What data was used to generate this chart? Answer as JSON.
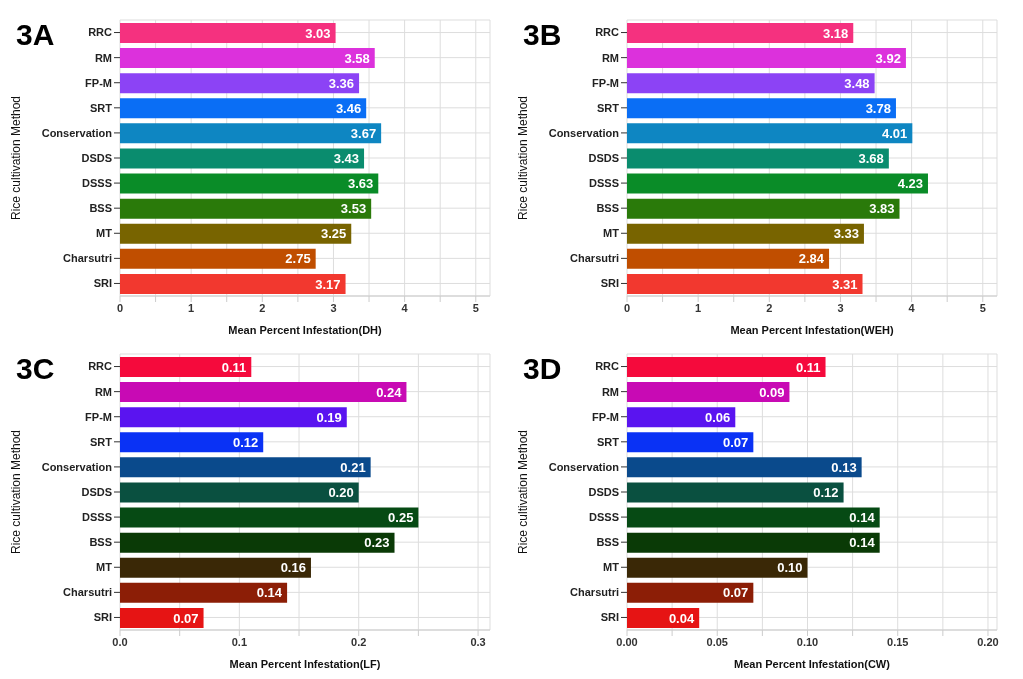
{
  "chart_data": [
    {
      "type": "bar",
      "orientation": "horizontal",
      "title": "3A",
      "xlabel": "Mean Percent Infestation(DH)",
      "ylabel": "Rice cultivation  Method",
      "categories": [
        "RRC",
        "RM",
        "FP-M",
        "SRT",
        "Conservation",
        "DSDS",
        "DSSS",
        "BSS",
        "MT",
        "Charsutri",
        "SRI"
      ],
      "values": [
        3.03,
        3.58,
        3.36,
        3.46,
        3.67,
        3.43,
        3.63,
        3.53,
        3.25,
        2.75,
        3.17
      ],
      "colors": [
        "#f5317f",
        "#dc31dc",
        "#8c43f5",
        "#0a6ef5",
        "#0e86c2",
        "#0a8c6e",
        "#0a8c28",
        "#2a7a0a",
        "#786400",
        "#c04e00",
        "#f2382f"
      ],
      "data_labels": true,
      "xlim": [
        0,
        5.2
      ],
      "xticks": [
        0,
        {
          "value": 0.5,
          "label": null
        },
        1,
        {
          "value": 1.5,
          "label": null
        },
        2,
        {
          "value": 2.5,
          "label": null
        },
        3,
        {
          "value": 3.5,
          "label": null
        },
        4,
        {
          "value": 4.5,
          "label": null
        },
        5
      ],
      "grid": true
    },
    {
      "type": "bar",
      "orientation": "horizontal",
      "title": "3B",
      "xlabel": "Mean Percent Infestation(WEH)",
      "ylabel": "Rice cultivation  Method",
      "categories": [
        "RRC",
        "RM",
        "FP-M",
        "SRT",
        "Conservation",
        "DSDS",
        "DSSS",
        "BSS",
        "MT",
        "Charsutri",
        "SRI"
      ],
      "values": [
        3.18,
        3.92,
        3.48,
        3.78,
        4.01,
        3.68,
        4.23,
        3.83,
        3.33,
        2.84,
        3.31
      ],
      "colors": [
        "#f5317f",
        "#dc31dc",
        "#8c43f5",
        "#0a6ef5",
        "#0e86c2",
        "#0a8c6e",
        "#0a8c28",
        "#2a7a0a",
        "#786400",
        "#c04e00",
        "#f2382f"
      ],
      "data_labels": true,
      "xlim": [
        0,
        5.2
      ],
      "xticks": [
        0,
        {
          "value": 0.5,
          "label": null
        },
        1,
        {
          "value": 1.5,
          "label": null
        },
        2,
        {
          "value": 2.5,
          "label": null
        },
        3,
        {
          "value": 3.5,
          "label": null
        },
        4,
        {
          "value": 4.5,
          "label": null
        },
        5
      ],
      "grid": true
    },
    {
      "type": "bar",
      "orientation": "horizontal",
      "title": "3C",
      "xlabel": "Mean Percent Infestation(LF)",
      "ylabel": "Rice cultivation  Method",
      "categories": [
        "RRC",
        "RM",
        "FP-M",
        "SRT",
        "Conservation",
        "DSDS",
        "DSSS",
        "BSS",
        "MT",
        "Charsutri",
        "SRI"
      ],
      "values": [
        0.11,
        0.24,
        0.19,
        0.12,
        0.21,
        0.2,
        0.25,
        0.23,
        0.16,
        0.14,
        0.07
      ],
      "value_labels": [
        "0.11",
        "0.24",
        "0.19",
        "0.12",
        "0.21",
        "0.20",
        "0.25",
        "0.23",
        "0.16",
        "0.14",
        "0.07"
      ],
      "colors": [
        "#f50a3c",
        "#c80ab4",
        "#5a14f0",
        "#0a32f5",
        "#0a4a8c",
        "#0a5040",
        "#064a14",
        "#0a3a06",
        "#3a2806",
        "#8c1e06",
        "#e61414"
      ],
      "xlim": [
        0,
        0.31
      ],
      "xticks": [
        {
          "value": 0,
          "label": "0.0"
        },
        {
          "value": 0.05,
          "label": null
        },
        0.1,
        {
          "value": 0.15,
          "label": null
        },
        0.2,
        {
          "value": 0.25,
          "label": null
        },
        0.3
      ],
      "grid": true
    },
    {
      "type": "bar",
      "orientation": "horizontal",
      "title": "3D",
      "xlabel": "Mean Percent Infestation(CW)",
      "ylabel": "Rice cultivation  Method",
      "categories": [
        "RRC",
        "RM",
        "FP-M",
        "SRT",
        "Conservation",
        "DSDS",
        "DSSS",
        "BSS",
        "MT",
        "Charsutri",
        "SRI"
      ],
      "values": [
        0.11,
        0.09,
        0.06,
        0.07,
        0.13,
        0.12,
        0.14,
        0.14,
        0.1,
        0.07,
        0.04
      ],
      "value_labels": [
        "0.11",
        "0.09",
        "0.06",
        "0.07",
        "0.13",
        "0.12",
        "0.14",
        "0.14",
        "0.10",
        "0.07",
        "0.04"
      ],
      "colors": [
        "#f50a3c",
        "#c80ab4",
        "#5a14f0",
        "#0a32f5",
        "#0a4a8c",
        "#0a5040",
        "#064a14",
        "#0a3a06",
        "#3a2806",
        "#8c1e06",
        "#e61414"
      ],
      "xlim": [
        0,
        0.205
      ],
      "xticks": [
        {
          "value": 0,
          "label": "0.00"
        },
        {
          "value": 0.025,
          "label": null
        },
        {
          "value": 0.05,
          "label": "0.05"
        },
        {
          "value": 0.075,
          "label": null
        },
        {
          "value": 0.1,
          "label": "0.10"
        },
        {
          "value": 0.125,
          "label": null
        },
        {
          "value": 0.15,
          "label": "0.15"
        },
        {
          "value": 0.175,
          "label": null
        },
        {
          "value": 0.2,
          "label": "0.20"
        }
      ],
      "grid": true
    }
  ]
}
